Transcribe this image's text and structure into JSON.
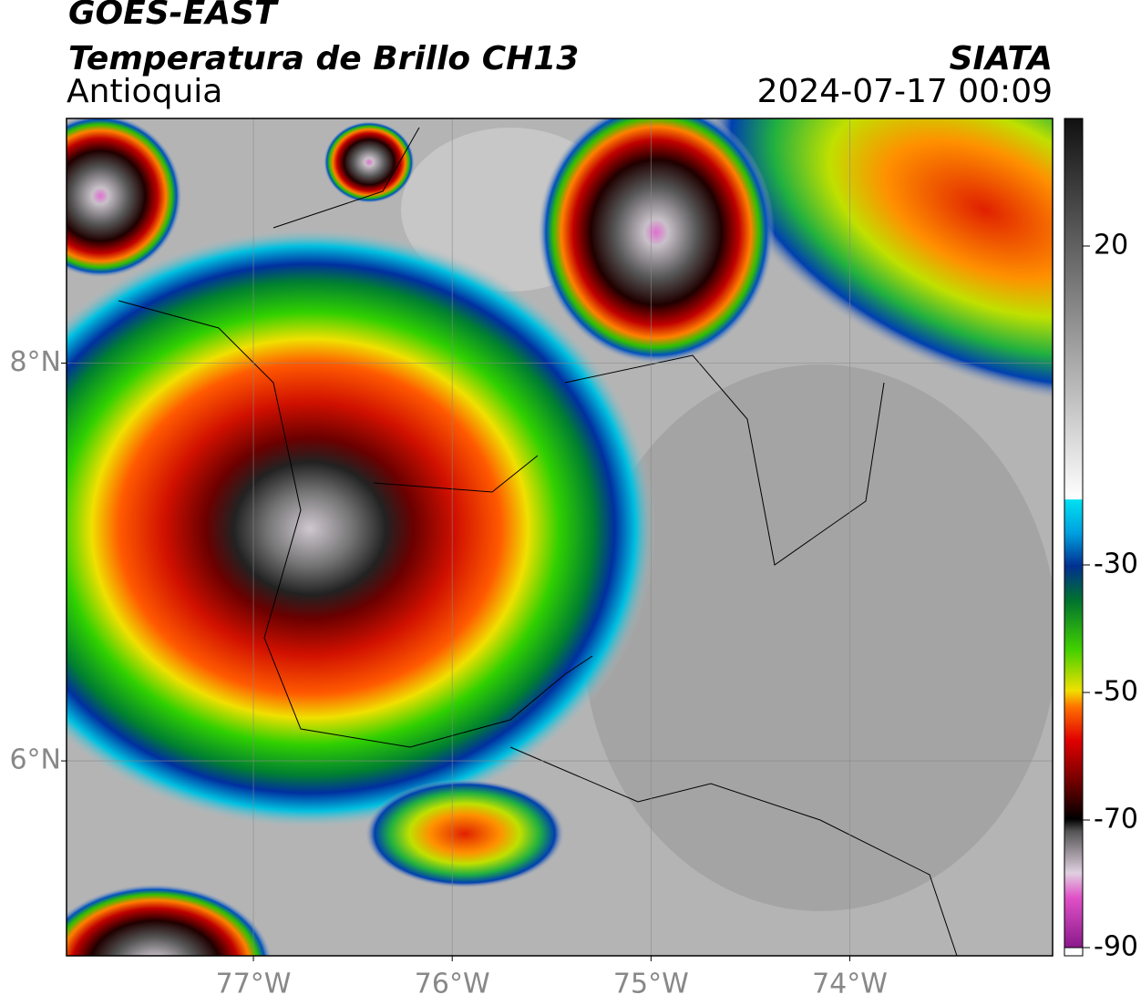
{
  "header": {
    "title": "GOES-EAST",
    "subtitle": "Temperatura de Brillo CH13",
    "region": "Antioquia",
    "source": "SIATA",
    "datetime": "2024-07-17 00:09"
  },
  "map": {
    "xlim": [
      -77.94,
      -72.98
    ],
    "ylim": [
      5.02,
      9.23
    ],
    "xticks": [
      {
        "value": -77,
        "label": "77°W"
      },
      {
        "value": -76,
        "label": "76°W"
      },
      {
        "value": -75,
        "label": "75°W"
      },
      {
        "value": -74,
        "label": "74°W"
      }
    ],
    "yticks": [
      {
        "value": 6,
        "label": "6°N"
      },
      {
        "value": 8,
        "label": "8°N"
      }
    ]
  },
  "colorbar": {
    "clim": [
      -90,
      40
    ],
    "ticks": [
      -90,
      -70,
      -50,
      -30,
      20
    ]
  }
}
